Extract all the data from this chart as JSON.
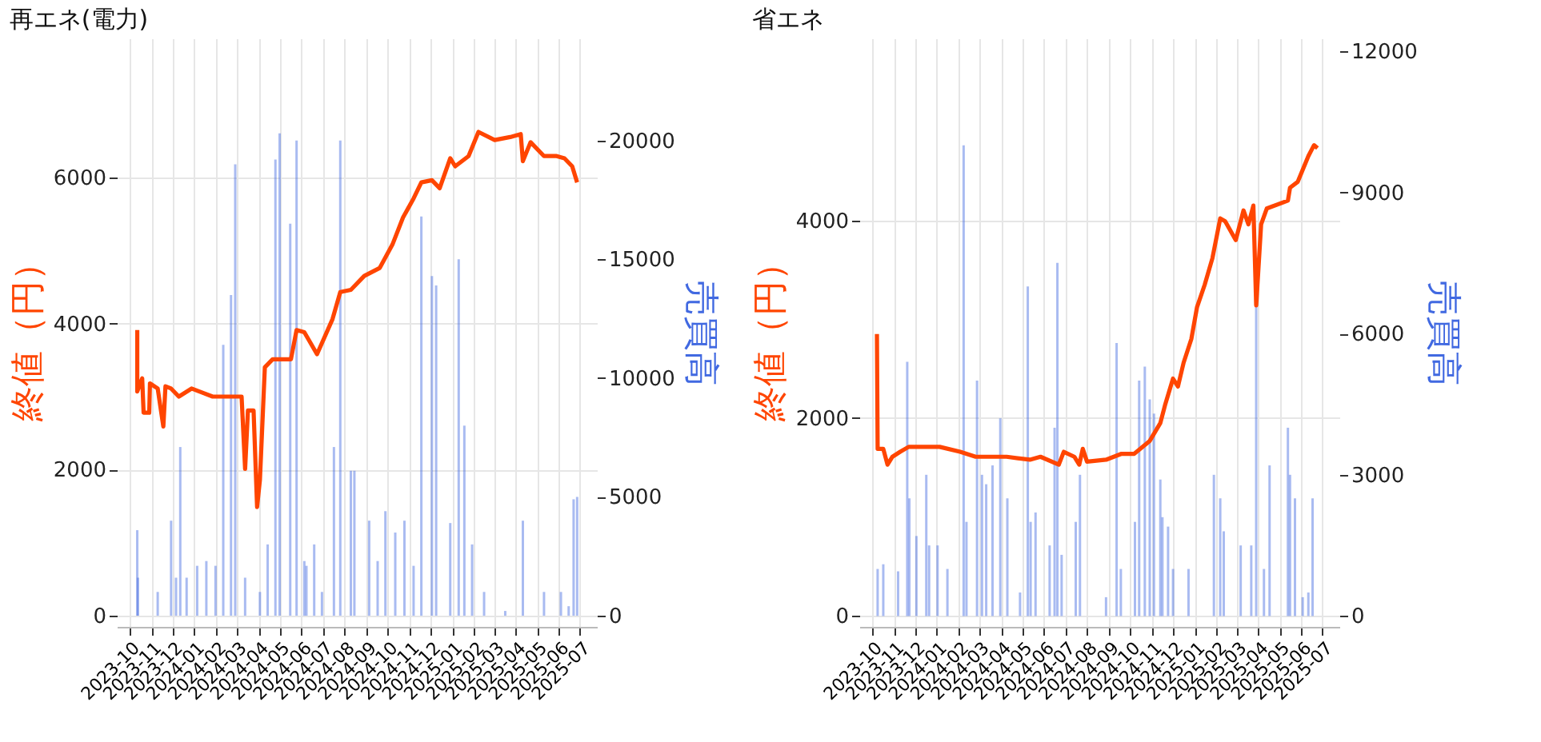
{
  "chart_data": [
    {
      "type": "line",
      "title": "再エネ(電力)",
      "ylabel": "終値（円）",
      "y2label": "売買高",
      "xlim": [
        "2023-09-13",
        "2025-07-25"
      ],
      "ylim": [
        -150,
        7900
      ],
      "y2lim": [
        -470,
        24300
      ],
      "xticks": [
        "2023-10",
        "2023-11",
        "2023-12",
        "2024-01",
        "2024-02",
        "2024-03",
        "2024-04",
        "2024-05",
        "2024-06",
        "2024-07",
        "2024-08",
        "2024-09",
        "2024-10",
        "2024-11",
        "2024-12",
        "2025-01",
        "2025-02",
        "2025-03",
        "2025-04",
        "2025-05",
        "2025-06",
        "2025-07"
      ],
      "yticks": [
        0,
        2000,
        4000,
        6000
      ],
      "y2ticks": [
        0,
        5000,
        10000,
        15000,
        20000
      ],
      "grid": true,
      "series": [
        {
          "type": "bar",
          "axis": "y2",
          "color": "#4169e1",
          "x": [
            "2023-10-12",
            "2023-10-13",
            "2023-11-10",
            "2023-11-29",
            "2023-12-06",
            "2023-12-12",
            "2023-12-21",
            "2024-01-05",
            "2024-01-18",
            "2024-01-31",
            "2024-02-11",
            "2024-02-22",
            "2024-02-28",
            "2024-03-13",
            "2024-04-03",
            "2024-04-14",
            "2024-04-25",
            "2024-05-01",
            "2024-05-16",
            "2024-05-25",
            "2024-06-05",
            "2024-06-08",
            "2024-06-19",
            "2024-06-30",
            "2024-07-17",
            "2024-07-26",
            "2024-08-10",
            "2024-08-15",
            "2024-09-05",
            "2024-09-17",
            "2024-09-28",
            "2024-10-12",
            "2024-10-25",
            "2024-11-07",
            "2024-11-18",
            "2024-12-03",
            "2024-12-09",
            "2024-12-29",
            "2025-01-10",
            "2025-01-18",
            "2025-01-29",
            "2025-02-15",
            "2025-03-17",
            "2025-04-11",
            "2025-05-11",
            "2025-06-04",
            "2025-06-15",
            "2025-06-22",
            "2025-06-27"
          ],
          "values": [
            3600,
            1600,
            1000,
            4000,
            1600,
            7100,
            1600,
            2100,
            2300,
            2100,
            11400,
            13500,
            19000,
            1600,
            1000,
            3000,
            19200,
            20300,
            16500,
            20000,
            2300,
            2100,
            3000,
            1000,
            7100,
            20000,
            6100,
            6100,
            4000,
            2300,
            4400,
            3500,
            4000,
            2100,
            16800,
            14300,
            13900,
            3900,
            15000,
            8000,
            3000,
            1000,
            200,
            4000,
            1000,
            1000,
            400,
            4900,
            5000
          ]
        },
        {
          "color": "#ff4500",
          "x": [
            "2023-10-12",
            "2023-10-12",
            "2023-10-19",
            "2023-10-21",
            "2023-10-29",
            "2023-10-30",
            "2023-11-10",
            "2023-11-18",
            "2023-11-21",
            "2023-11-29",
            "2023-12-10",
            "2023-12-28",
            "2024-01-27",
            "2024-02-29",
            "2024-03-08",
            "2024-03-13",
            "2024-03-17",
            "2024-03-25",
            "2024-03-30",
            "2024-04-03",
            "2024-04-10",
            "2024-04-21",
            "2024-05-17",
            "2024-05-25",
            "2024-06-05",
            "2024-06-23",
            "2024-07-15",
            "2024-07-26",
            "2024-08-10",
            "2024-08-29",
            "2024-09-20",
            "2024-10-08",
            "2024-10-23",
            "2024-11-07",
            "2024-11-18",
            "2024-12-03",
            "2024-12-14",
            "2024-12-29",
            "2025-01-05",
            "2025-01-24",
            "2025-02-07",
            "2025-03-02",
            "2025-03-24",
            "2025-04-08",
            "2025-04-11",
            "2025-04-22",
            "2025-05-11",
            "2025-05-29",
            "2025-06-09",
            "2025-06-20",
            "2025-06-27"
          ],
          "values": [
            3910,
            3070,
            3250,
            2780,
            2780,
            3180,
            3110,
            2590,
            3140,
            3110,
            3000,
            3110,
            3000,
            3000,
            3000,
            2010,
            2810,
            2810,
            1490,
            1860,
            3400,
            3510,
            3510,
            3910,
            3880,
            3580,
            4060,
            4430,
            4460,
            4650,
            4760,
            5080,
            5450,
            5710,
            5930,
            5960,
            5850,
            6260,
            6150,
            6290,
            6620,
            6510,
            6550,
            6590,
            6220,
            6480,
            6290,
            6290,
            6260,
            6150,
            5930
          ]
        }
      ]
    },
    {
      "type": "line",
      "title": "省エネ",
      "ylabel": "終値（円）",
      "y2label": "売買高",
      "xlim": [
        "2023-09-13",
        "2025-07-25"
      ],
      "ylim": [
        -110,
        5840
      ],
      "y2lim": [
        -230,
        12270
      ],
      "xticks": [
        "2023-10",
        "2023-11",
        "2023-12",
        "2024-01",
        "2024-02",
        "2024-03",
        "2024-04",
        "2024-05",
        "2024-06",
        "2024-07",
        "2024-08",
        "2024-09",
        "2024-10",
        "2024-11",
        "2024-12",
        "2025-01",
        "2025-02",
        "2025-03",
        "2025-04",
        "2025-05",
        "2025-06",
        "2025-07"
      ],
      "yticks": [
        0,
        2000,
        4000
      ],
      "y2ticks": [
        0,
        3000,
        6000,
        9000,
        12000
      ],
      "grid": true,
      "series": [
        {
          "type": "bar",
          "axis": "y2",
          "color": "#4169e1",
          "x": [
            "2023-10-09",
            "2023-10-17",
            "2023-11-07",
            "2023-11-20",
            "2023-11-23",
            "2023-12-03",
            "2023-12-17",
            "2023-12-21",
            "2024-01-02",
            "2024-01-16",
            "2024-02-08",
            "2024-02-12",
            "2024-02-27",
            "2024-03-05",
            "2024-03-11",
            "2024-03-20",
            "2024-03-31",
            "2024-04-10",
            "2024-04-28",
            "2024-05-09",
            "2024-05-13",
            "2024-05-20",
            "2024-06-09",
            "2024-06-16",
            "2024-06-20",
            "2024-06-26",
            "2024-07-16",
            "2024-07-22",
            "2024-08-28",
            "2024-09-12",
            "2024-09-18",
            "2024-10-08",
            "2024-10-14",
            "2024-10-22",
            "2024-10-29",
            "2024-11-04",
            "2024-11-13",
            "2024-11-16",
            "2024-11-24",
            "2024-12-01",
            "2024-12-23",
            "2025-01-28",
            "2025-02-06",
            "2025-02-11",
            "2025-03-07",
            "2025-03-22",
            "2025-03-29",
            "2025-04-09",
            "2025-04-17",
            "2025-05-13",
            "2025-05-16",
            "2025-05-23",
            "2025-06-03",
            "2025-06-11",
            "2025-06-17"
          ],
          "values": [
            1000,
            1100,
            950,
            5400,
            2500,
            1700,
            3000,
            1500,
            1500,
            1000,
            10000,
            2000,
            5000,
            3000,
            2800,
            3200,
            4200,
            2500,
            500,
            7000,
            2000,
            2200,
            1500,
            4000,
            7500,
            1300,
            2000,
            3000,
            400,
            5800,
            1000,
            2000,
            5000,
            5300,
            4600,
            4300,
            2900,
            2100,
            1900,
            1000,
            1000,
            3000,
            2500,
            1800,
            1500,
            1500,
            6600,
            1000,
            3200,
            4000,
            3000,
            2500,
            400,
            500,
            2500
          ]
        },
        {
          "color": "#ff4500",
          "x": [
            "2023-10-08",
            "2023-10-09",
            "2023-10-17",
            "2023-10-23",
            "2023-10-30",
            "2023-11-10",
            "2023-11-22",
            "2024-01-05",
            "2024-02-03",
            "2024-02-25",
            "2024-04-09",
            "2024-05-12",
            "2024-05-27",
            "2024-06-22",
            "2024-06-29",
            "2024-07-14",
            "2024-07-21",
            "2024-07-26",
            "2024-08-01",
            "2024-08-28",
            "2024-09-19",
            "2024-10-07",
            "2024-10-29",
            "2024-11-13",
            "2024-11-20",
            "2024-12-01",
            "2024-12-08",
            "2024-12-16",
            "2024-12-27",
            "2025-01-04",
            "2025-01-15",
            "2025-01-26",
            "2025-02-06",
            "2025-02-13",
            "2025-02-28",
            "2025-03-11",
            "2025-03-18",
            "2025-03-25",
            "2025-03-29",
            "2025-04-05",
            "2025-04-13",
            "2025-05-13",
            "2025-05-16",
            "2025-05-27",
            "2025-06-11",
            "2025-06-19",
            "2025-06-24"
          ],
          "values": [
            2850,
            1690,
            1690,
            1530,
            1610,
            1660,
            1710,
            1710,
            1660,
            1610,
            1610,
            1580,
            1610,
            1530,
            1660,
            1610,
            1530,
            1690,
            1560,
            1580,
            1640,
            1640,
            1770,
            1950,
            2140,
            2400,
            2320,
            2560,
            2800,
            3120,
            3350,
            3620,
            4020,
            3990,
            3800,
            4100,
            3960,
            4150,
            3140,
            3960,
            4120,
            4200,
            4330,
            4390,
            4650,
            4760,
            4730
          ]
        }
      ]
    }
  ]
}
